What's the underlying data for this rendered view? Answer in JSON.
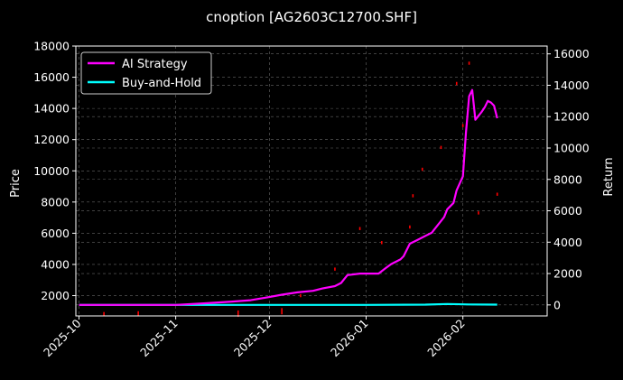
{
  "chart_data": {
    "type": "line",
    "title": "cnoption [AG2603C12700.SHF]",
    "ylabel": "Price",
    "y2label": "Return",
    "legend_position": "upper-left",
    "grid": true,
    "xlim": [
      "2025-09-30",
      "2026-02-28"
    ],
    "ylim": [
      700,
      18000
    ],
    "y2lim": [
      -700,
      16500
    ],
    "x_ticks": [
      "2025-10",
      "2025-11",
      "2025-12",
      "2026-01",
      "2026-02"
    ],
    "x_tick_dates": [
      "2025-10-01",
      "2025-11-01",
      "2025-12-01",
      "2026-01-01",
      "2026-02-01"
    ],
    "y_ticks": [
      2000,
      4000,
      6000,
      8000,
      10000,
      12000,
      14000,
      16000,
      18000
    ],
    "y2_ticks": [
      0,
      2000,
      4000,
      6000,
      8000,
      10000,
      12000,
      14000,
      16000
    ],
    "colors": {
      "strategy": "#ff00ff",
      "buyhold": "#00ffff",
      "candles": "#ff0000"
    },
    "series": [
      {
        "name": "AI Strategy",
        "axis": "right",
        "x": [
          "2025-10-01",
          "2025-10-15",
          "2025-11-01",
          "2025-11-10",
          "2025-11-18",
          "2025-11-25",
          "2025-12-01",
          "2025-12-05",
          "2025-12-10",
          "2025-12-15",
          "2025-12-18",
          "2025-12-22",
          "2025-12-24",
          "2025-12-26",
          "2025-12-30",
          "2026-01-02",
          "2026-01-05",
          "2026-01-07",
          "2026-01-09",
          "2026-01-12",
          "2026-01-13",
          "2026-01-15",
          "2026-01-17",
          "2026-01-20",
          "2026-01-22",
          "2026-01-24",
          "2026-01-26",
          "2026-01-27",
          "2026-01-29",
          "2026-01-30",
          "2026-02-01",
          "2026-02-02",
          "2026-02-03",
          "2026-02-04",
          "2026-02-05",
          "2026-02-07",
          "2026-02-08",
          "2026-02-09",
          "2026-02-10",
          "2026-02-11",
          "2026-02-12"
        ],
        "y": [
          0,
          0,
          0,
          100,
          200,
          300,
          500,
          650,
          800,
          900,
          1050,
          1200,
          1400,
          1900,
          2000,
          2000,
          2000,
          2300,
          2600,
          2900,
          3100,
          3900,
          4100,
          4400,
          4600,
          5100,
          5600,
          6100,
          6500,
          7300,
          8200,
          11000,
          13300,
          13700,
          11800,
          12300,
          12600,
          13000,
          12900,
          12700,
          11900
        ]
      },
      {
        "name": "Buy-and-Hold",
        "axis": "right",
        "x": [
          "2025-10-01",
          "2025-11-01",
          "2025-12-01",
          "2026-01-01",
          "2026-01-20",
          "2026-01-27",
          "2026-02-03",
          "2026-02-12"
        ],
        "y": [
          0,
          0,
          0,
          0,
          20,
          60,
          30,
          20
        ]
      }
    ],
    "candles": [
      {
        "x": "2025-10-09",
        "low": 680,
        "high": 950
      },
      {
        "x": "2025-10-20",
        "low": 690,
        "high": 1000
      },
      {
        "x": "2025-11-21",
        "low": 640,
        "high": 1050
      },
      {
        "x": "2025-12-05",
        "low": 800,
        "high": 1200
      },
      {
        "x": "2025-12-11",
        "low": 1900,
        "high": 2100
      },
      {
        "x": "2025-12-22",
        "low": 3600,
        "high": 3800
      },
      {
        "x": "2025-12-30",
        "low": 6200,
        "high": 6400
      },
      {
        "x": "2026-01-06",
        "low": 5300,
        "high": 5500
      },
      {
        "x": "2026-01-15",
        "low": 6300,
        "high": 6500
      },
      {
        "x": "2026-01-16",
        "low": 8300,
        "high": 8500
      },
      {
        "x": "2026-01-19",
        "low": 10000,
        "high": 10200
      },
      {
        "x": "2026-01-25",
        "low": 11400,
        "high": 11600
      },
      {
        "x": "2026-01-30",
        "low": 15500,
        "high": 15700
      },
      {
        "x": "2026-02-01",
        "low": 12800,
        "high": 13000
      },
      {
        "x": "2026-02-03",
        "low": 16800,
        "high": 17000
      },
      {
        "x": "2026-02-06",
        "low": 7200,
        "high": 7400
      },
      {
        "x": "2026-02-12",
        "low": 8400,
        "high": 8600
      }
    ]
  }
}
